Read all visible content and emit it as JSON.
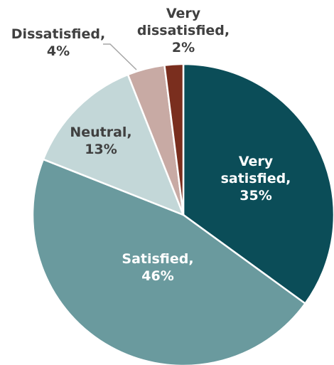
{
  "chart_data": {
    "type": "pie",
    "title": "",
    "start_angle_deg": 0,
    "direction": "clockwise",
    "slices": [
      {
        "label": "Very satisfied",
        "value": 35,
        "display": [
          "Very",
          "satisfied,",
          "35%"
        ],
        "color": "#0b4d58",
        "label_color": "#ffffff"
      },
      {
        "label": "Satisfied",
        "value": 46,
        "display": [
          "Satisfied,",
          "46%"
        ],
        "color": "#6a9a9e",
        "label_color": "#ffffff"
      },
      {
        "label": "Neutral",
        "value": 13,
        "display": [
          "Neutral,",
          "13%"
        ],
        "color": "#c3d7d8",
        "label_color": "#404040"
      },
      {
        "label": "Dissatisfied",
        "value": 4,
        "display": [
          "Dissatisfied,",
          "4%"
        ],
        "color": "#c8aaa4",
        "label_color": "#404040"
      },
      {
        "label": "Very dissatisfied",
        "value": 2,
        "display": [
          "Very",
          "dissatisfied,",
          "2%"
        ],
        "color": "#7a2e1e",
        "label_color": "#404040"
      }
    ]
  }
}
